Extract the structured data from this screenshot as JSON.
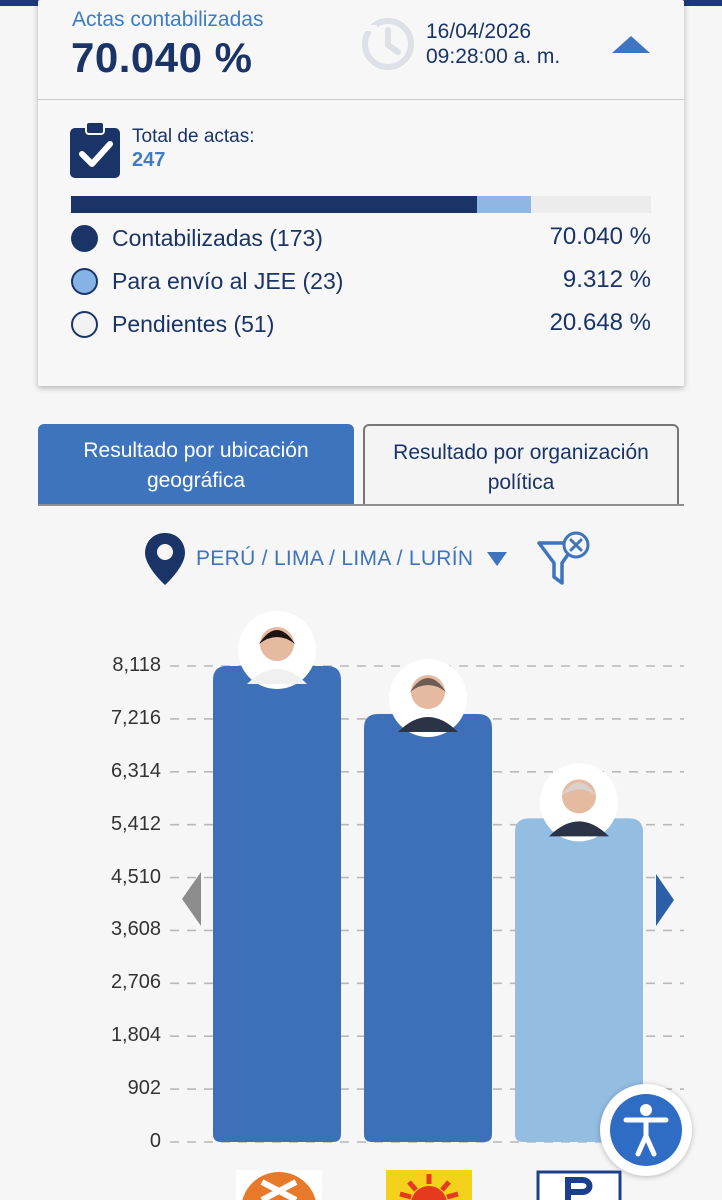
{
  "summary": {
    "actas_label": "Actas contabilizadas",
    "actas_percent": "70.040 %",
    "date": "16/04/2026",
    "time": "09:28:00 a. m.",
    "total_label": "Total de actas:",
    "total_value": "247",
    "progress": [
      {
        "label": "Contabilizadas (173)",
        "percent": "70.040 %",
        "fraction": 0.7004,
        "color": "#1a3467"
      },
      {
        "label": "Para envío al JEE (23)",
        "percent": "9.312 %",
        "fraction": 0.09312,
        "color": "#8fb7e3"
      },
      {
        "label": "Pendientes (51)",
        "percent": "20.648 %",
        "fraction": 0.20648,
        "color": "#ececec"
      }
    ]
  },
  "tabs": {
    "geo": "Resultado por ubicación geográfica",
    "org": "Resultado por organización política"
  },
  "location": "PERÚ / LIMA / LIMA / LURÍN",
  "icons": [
    "clock-icon",
    "collapse-arrow-icon",
    "clipboard-check-icon",
    "location-pin-icon",
    "dropdown-caret-icon",
    "filter-clear-icon",
    "chevron-left-icon",
    "chevron-right-icon",
    "accessibility-icon"
  ],
  "colors": {
    "navy": "#1a3467",
    "accent": "#3e74be",
    "bar_dark": "#3d70b8",
    "bar_light": "#94bde2"
  },
  "chart_data": {
    "type": "bar",
    "categories": [
      "",
      "",
      ""
    ],
    "values": [
      8118,
      7300,
      5520
    ],
    "bar_colors": [
      "#3d70b8",
      "#3d70b8",
      "#94bde2"
    ],
    "yticks": [
      0,
      902,
      1804,
      2706,
      3608,
      4510,
      5412,
      6314,
      7216,
      8118
    ],
    "ytick_labels": [
      "0",
      "902",
      "1,804",
      "2,706",
      "3,608",
      "4,510",
      "5,412",
      "6,314",
      "7,216",
      "8,118"
    ],
    "ylim": [
      0,
      8118
    ],
    "grid": true,
    "title": "",
    "xlabel": "",
    "ylabel": ""
  }
}
